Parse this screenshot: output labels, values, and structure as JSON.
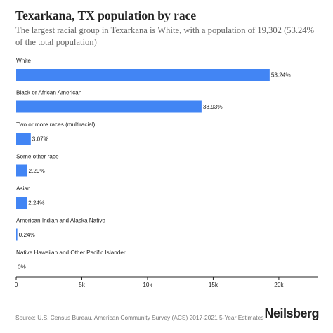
{
  "header": {
    "title": "Texarkana, TX population by race",
    "subtitle": "The largest racial group in Texarkana is White, with a population of 19,302 (53.24% of the total population)"
  },
  "footer": {
    "source": "Source: U.S. Census Bureau, American Community Survey (ACS) 2017-2021 5-Year Estimates",
    "brand": "Neilsberg"
  },
  "colors": {
    "bar": "#4285f4",
    "axis": "#222222",
    "text": "#222222"
  },
  "chart_data": {
    "type": "bar",
    "orientation": "horizontal",
    "categories": [
      "White",
      "Black or African American",
      "Two or more races (multiracial)",
      "Some other race",
      "Asian",
      "American Indian and Alaska Native",
      "Native Hawaiian and Other Pacific Islander"
    ],
    "values": [
      19302,
      14114,
      1113,
      830,
      812,
      87,
      0
    ],
    "data_labels": [
      "53.24%",
      "38.93%",
      "3.07%",
      "2.29%",
      "2.24%",
      "0.24%",
      "0%"
    ],
    "xlim": [
      0,
      23000
    ],
    "xticks": [
      0,
      5000,
      10000,
      15000,
      20000
    ],
    "xtick_labels": [
      "0",
      "5k",
      "10k",
      "15k",
      "20k"
    ],
    "grid": false,
    "legend": "none"
  }
}
